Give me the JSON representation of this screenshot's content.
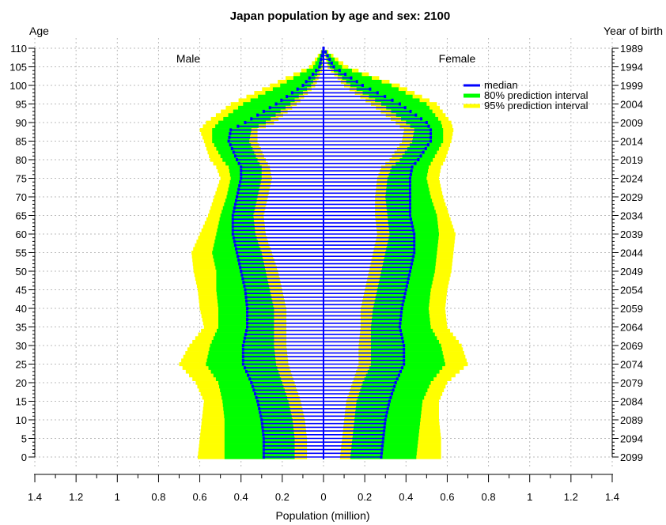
{
  "chart_data": {
    "type": "population-pyramid",
    "title": "Japan population by age and sex: 2100",
    "xlabel": "Population (million)",
    "left_axis_title": "Age",
    "right_axis_title": "Year of birth",
    "male_label": "Male",
    "female_label": "Female",
    "xlim": [
      -1.4,
      1.4
    ],
    "x_tick_values": [
      -1.4,
      -1.2,
      -1.0,
      -0.8,
      -0.6,
      -0.4,
      -0.2,
      0,
      0.2,
      0.4,
      0.6,
      0.8,
      1.0,
      1.2,
      1.4
    ],
    "x_tick_labels": [
      "1.4",
      "1.2",
      "1",
      "0.8",
      "0.6",
      "0.4",
      "0.2",
      "0",
      "0.2",
      "0.4",
      "0.6",
      "0.8",
      "1",
      "1.2",
      "1.4"
    ],
    "age_ticks": [
      "0",
      "5",
      "10",
      "15",
      "20",
      "25",
      "30",
      "35",
      "40",
      "45",
      "50",
      "55",
      "60",
      "65",
      "70",
      "75",
      "80",
      "85",
      "90",
      "95",
      "100",
      "105",
      "110"
    ],
    "birth_year_ticks": [
      "2099",
      "2094",
      "2089",
      "2084",
      "2079",
      "2074",
      "2069",
      "2064",
      "2059",
      "2054",
      "2049",
      "2044",
      "2039",
      "2034",
      "2029",
      "2024",
      "2019",
      "2014",
      "2009",
      "2004",
      "1999",
      "1994",
      "1989"
    ],
    "legend": {
      "placement": "top-right",
      "entries": [
        {
          "label": "median",
          "color": "#0000ff"
        },
        {
          "label": "80% prediction interval",
          "color": "#00ff00"
        },
        {
          "label": "95% prediction interval",
          "color": "#ffff00"
        }
      ]
    },
    "colors": {
      "median": "#0000ff",
      "pi80": "#00ff00",
      "pi95": "#ffff00",
      "grid": "#bbbbbb"
    },
    "grid": true,
    "age_keypoints": [
      0,
      5,
      10,
      15,
      20,
      25,
      30,
      35,
      40,
      45,
      50,
      55,
      60,
      65,
      70,
      75,
      78,
      80,
      85,
      88,
      90,
      95,
      100,
      105,
      110
    ],
    "male": {
      "median": [
        0.29,
        0.29,
        0.3,
        0.32,
        0.35,
        0.39,
        0.39,
        0.37,
        0.37,
        0.38,
        0.4,
        0.42,
        0.44,
        0.44,
        0.42,
        0.4,
        0.4,
        0.42,
        0.46,
        0.45,
        0.38,
        0.23,
        0.1,
        0.02,
        0.0
      ],
      "pi80_lo": [
        0.14,
        0.14,
        0.15,
        0.17,
        0.2,
        0.23,
        0.24,
        0.24,
        0.24,
        0.26,
        0.28,
        0.3,
        0.33,
        0.34,
        0.32,
        0.3,
        0.3,
        0.32,
        0.36,
        0.35,
        0.28,
        0.16,
        0.06,
        0.01,
        0.0
      ],
      "pi80_hi": [
        0.48,
        0.48,
        0.48,
        0.49,
        0.51,
        0.57,
        0.55,
        0.51,
        0.51,
        0.52,
        0.52,
        0.54,
        0.52,
        0.5,
        0.47,
        0.45,
        0.46,
        0.49,
        0.54,
        0.54,
        0.51,
        0.39,
        0.21,
        0.05,
        0.0
      ],
      "pi95_lo": [
        0.08,
        0.08,
        0.09,
        0.11,
        0.14,
        0.17,
        0.18,
        0.18,
        0.18,
        0.2,
        0.22,
        0.25,
        0.28,
        0.29,
        0.27,
        0.25,
        0.26,
        0.28,
        0.32,
        0.32,
        0.24,
        0.13,
        0.04,
        0.0,
        0.0
      ],
      "pi95_hi": [
        0.61,
        0.6,
        0.59,
        0.58,
        0.62,
        0.7,
        0.65,
        0.58,
        0.6,
        0.61,
        0.63,
        0.64,
        0.6,
        0.56,
        0.53,
        0.5,
        0.52,
        0.55,
        0.58,
        0.6,
        0.57,
        0.45,
        0.26,
        0.07,
        0.0
      ]
    },
    "female": {
      "median": [
        0.28,
        0.29,
        0.3,
        0.32,
        0.35,
        0.39,
        0.39,
        0.37,
        0.38,
        0.4,
        0.42,
        0.44,
        0.44,
        0.42,
        0.42,
        0.42,
        0.43,
        0.46,
        0.52,
        0.52,
        0.5,
        0.37,
        0.19,
        0.05,
        0.0
      ],
      "pi80_lo": [
        0.13,
        0.14,
        0.15,
        0.16,
        0.19,
        0.23,
        0.23,
        0.23,
        0.24,
        0.26,
        0.28,
        0.3,
        0.32,
        0.31,
        0.3,
        0.31,
        0.33,
        0.37,
        0.43,
        0.44,
        0.4,
        0.28,
        0.13,
        0.03,
        0.0
      ],
      "pi80_hi": [
        0.45,
        0.46,
        0.47,
        0.48,
        0.52,
        0.59,
        0.57,
        0.52,
        0.51,
        0.52,
        0.54,
        0.55,
        0.56,
        0.55,
        0.52,
        0.5,
        0.51,
        0.53,
        0.58,
        0.58,
        0.57,
        0.5,
        0.33,
        0.09,
        0.0
      ],
      "pi95_lo": [
        0.08,
        0.09,
        0.1,
        0.11,
        0.14,
        0.17,
        0.17,
        0.18,
        0.18,
        0.2,
        0.22,
        0.24,
        0.26,
        0.25,
        0.25,
        0.26,
        0.28,
        0.32,
        0.38,
        0.39,
        0.35,
        0.23,
        0.1,
        0.02,
        0.0
      ],
      "pi95_hi": [
        0.57,
        0.57,
        0.56,
        0.56,
        0.6,
        0.7,
        0.67,
        0.6,
        0.59,
        0.6,
        0.62,
        0.63,
        0.64,
        0.61,
        0.58,
        0.56,
        0.57,
        0.59,
        0.62,
        0.63,
        0.62,
        0.55,
        0.37,
        0.12,
        0.0
      ]
    }
  }
}
